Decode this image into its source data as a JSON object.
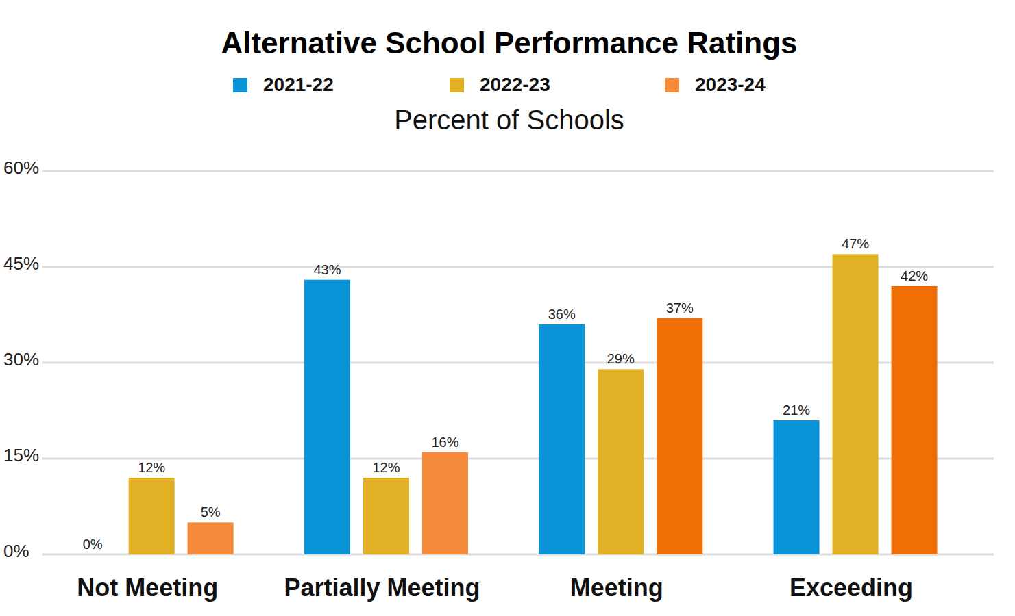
{
  "chart_data": {
    "type": "bar",
    "title": "Alternative School Performance Ratings",
    "ylabel": "Percent of Schools",
    "categories": [
      "Not Meeting",
      "Partially Meeting",
      "Meeting",
      "Exceeding"
    ],
    "series": [
      {
        "name": "2021-22",
        "color": "#0b93d8",
        "values": [
          0,
          43,
          36,
          21
        ],
        "value_labels": [
          "0%",
          "43%",
          "36%",
          "21%"
        ]
      },
      {
        "name": "2022-23",
        "color": "#e2b024",
        "values": [
          12,
          12,
          29,
          47
        ],
        "value_labels": [
          "12%",
          "12%",
          "29%",
          "47%"
        ]
      },
      {
        "name": "2023-24",
        "color": "#f68b3c",
        "colors": [
          "#f68b3c",
          "#f68b3c",
          "#ef6e05",
          "#ef6e05"
        ],
        "values": [
          5,
          16,
          37,
          42
        ],
        "value_labels": [
          "5%",
          "16%",
          "37%",
          "42%"
        ]
      }
    ],
    "ylim": [
      0,
      60
    ],
    "yticks": [
      {
        "value": 0,
        "label": "0%"
      },
      {
        "value": 15,
        "label": "15%"
      },
      {
        "value": 30,
        "label": "30%"
      },
      {
        "value": 45,
        "label": "45%"
      },
      {
        "value": 60,
        "label": "60%"
      }
    ],
    "grid": true,
    "legend": "top",
    "data_labels": true
  }
}
